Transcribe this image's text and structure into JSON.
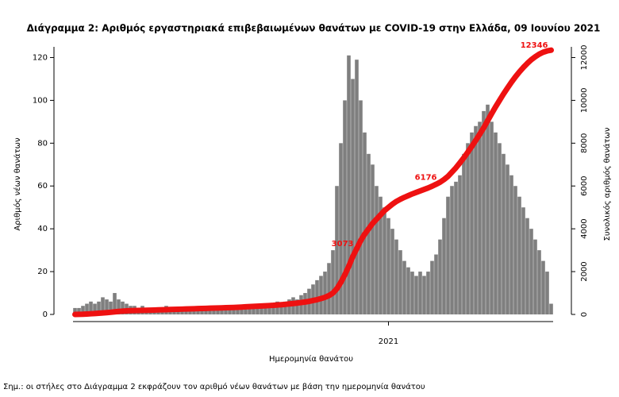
{
  "chart_data": {
    "type": "bar_line",
    "title": "Διάγραμμα 2: Αριθμός εργαστηριακά επιβεβαιωμένων θανάτων με COVID-19 στην Ελλάδα, 09 Ιουνίου 2021",
    "xlabel": "Ημερομηνία θανάτου",
    "ylabel": "Αριθμός νέων θανάτων",
    "y2label": "Συνολικός αριθμός θανάτων",
    "note": "Σημ.: οι στήλες στο Διάγραμμα 2 εκφράζουν τον αριθμό νέων θανάτων με βάση την ημερομηνία θανάτου",
    "categories": [
      null,
      null,
      null,
      null,
      null,
      null,
      null,
      null,
      null,
      null,
      null,
      null,
      null,
      null,
      null,
      null,
      null,
      null,
      null,
      null,
      null,
      null,
      null,
      null,
      null,
      null,
      null,
      null,
      null,
      null,
      null,
      null,
      null,
      null,
      null,
      null,
      null,
      null,
      null,
      null,
      null,
      null,
      null,
      null,
      null,
      null,
      null,
      null,
      null,
      null,
      null,
      null,
      null,
      null,
      null,
      null,
      null,
      null,
      null,
      null,
      null,
      null,
      null,
      null,
      null,
      null,
      null,
      null,
      null,
      null,
      null,
      null,
      null,
      null,
      null,
      null,
      null,
      null,
      null,
      "2021",
      null,
      null,
      null,
      null,
      null,
      null,
      null,
      null,
      null,
      null,
      null,
      null,
      null,
      null,
      null,
      null,
      null,
      null,
      null,
      null,
      null,
      null,
      null,
      null,
      null,
      null,
      null,
      null,
      null,
      null,
      null,
      null,
      null,
      null,
      null,
      null,
      null,
      null,
      null,
      null,
      null
    ],
    "series": [
      {
        "color": "#7f7f7f",
        "values": [
          3,
          3,
          4,
          5,
          6,
          5,
          6,
          8,
          7,
          6,
          10,
          7,
          6,
          5,
          4,
          4,
          3,
          4,
          3,
          3,
          3,
          2,
          3,
          4,
          3,
          3,
          2,
          3,
          3,
          2,
          3,
          2,
          2,
          3,
          3,
          2,
          3,
          3,
          3,
          4,
          3,
          4,
          3,
          4,
          4,
          3,
          4,
          5,
          4,
          5,
          5,
          6,
          5,
          6,
          7,
          8,
          7,
          9,
          10,
          12,
          14,
          16,
          18,
          20,
          24,
          30,
          60,
          80,
          100,
          121,
          110,
          119,
          100,
          85,
          75,
          70,
          60,
          55,
          50,
          45,
          40,
          35,
          30,
          25,
          22,
          20,
          18,
          20,
          18,
          20,
          25,
          28,
          35,
          45,
          55,
          60,
          62,
          65,
          75,
          80,
          85,
          88,
          90,
          95,
          98,
          90,
          85,
          80,
          75,
          70,
          65,
          60,
          55,
          50,
          45,
          40,
          35,
          30,
          25,
          20,
          5
        ]
      },
      {
        "color": "#ee1111",
        "axis": "y2",
        "values": [
          0,
          5,
          10,
          20,
          30,
          40,
          55,
          70,
          85,
          100,
          120,
          140,
          155,
          165,
          175,
          180,
          185,
          190,
          195,
          200,
          205,
          212,
          218,
          224,
          230,
          236,
          242,
          248,
          254,
          260,
          266,
          272,
          278,
          284,
          290,
          296,
          302,
          308,
          314,
          320,
          326,
          335,
          345,
          355,
          365,
          375,
          385,
          395,
          405,
          415,
          425,
          440,
          455,
          470,
          490,
          510,
          530,
          555,
          580,
          610,
          650,
          690,
          740,
          800,
          880,
          1000,
          1200,
          1500,
          1850,
          2250,
          2700,
          3073,
          3450,
          3750,
          4000,
          4250,
          4450,
          4650,
          4850,
          5000,
          5150,
          5280,
          5380,
          5470,
          5550,
          5630,
          5700,
          5770,
          5840,
          5910,
          5990,
          6080,
          6176,
          6300,
          6450,
          6650,
          6850,
          7080,
          7320,
          7580,
          7850,
          8130,
          8420,
          8720,
          9050,
          9380,
          9700,
          10000,
          10300,
          10580,
          10850,
          11100,
          11330,
          11540,
          11730,
          11900,
          12040,
          12160,
          12250,
          12310,
          12346
        ],
        "value_labels": [
          null,
          null,
          null,
          null,
          null,
          null,
          null,
          null,
          null,
          null,
          null,
          null,
          null,
          null,
          null,
          null,
          null,
          null,
          null,
          null,
          null,
          null,
          null,
          null,
          null,
          null,
          null,
          null,
          null,
          null,
          null,
          null,
          null,
          null,
          null,
          null,
          null,
          null,
          null,
          null,
          null,
          null,
          null,
          null,
          null,
          null,
          null,
          null,
          null,
          null,
          null,
          null,
          null,
          null,
          null,
          null,
          null,
          null,
          null,
          null,
          null,
          null,
          null,
          null,
          null,
          null,
          null,
          null,
          null,
          null,
          null,
          "3073",
          null,
          null,
          null,
          null,
          null,
          null,
          null,
          null,
          null,
          null,
          null,
          null,
          null,
          null,
          null,
          null,
          null,
          null,
          null,
          null,
          "6176",
          null,
          null,
          null,
          null,
          null,
          null,
          null,
          null,
          null,
          null,
          null,
          null,
          null,
          null,
          null,
          null,
          null,
          null,
          null,
          null,
          null,
          null,
          null,
          null,
          null,
          null,
          null,
          "12346"
        ]
      }
    ],
    "ylim": [
      0,
      125
    ],
    "yticks": [
      0,
      20,
      40,
      60,
      80,
      100,
      120
    ],
    "y2lim": [
      0,
      12500
    ],
    "y2ticks": [
      0,
      2000,
      4000,
      6000,
      8000,
      10000,
      12000
    ]
  }
}
